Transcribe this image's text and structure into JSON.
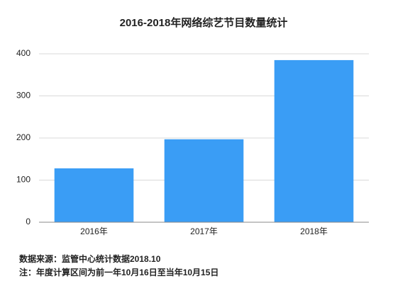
{
  "chart_data": {
    "type": "bar",
    "title": "2016-2018年网络综艺节目数量统计",
    "categories": [
      "2016年",
      "2017年",
      "2018年"
    ],
    "values": [
      128,
      197,
      385
    ],
    "color": "#3a9df5",
    "ylim": [
      0,
      400
    ],
    "yticks": [
      0,
      100,
      200,
      300,
      400
    ],
    "grid": true,
    "notes": [
      "数据来源：监管中心统计数据2018.10",
      "注：年度计算区间为前一年10月16日至当年10月15日"
    ]
  }
}
